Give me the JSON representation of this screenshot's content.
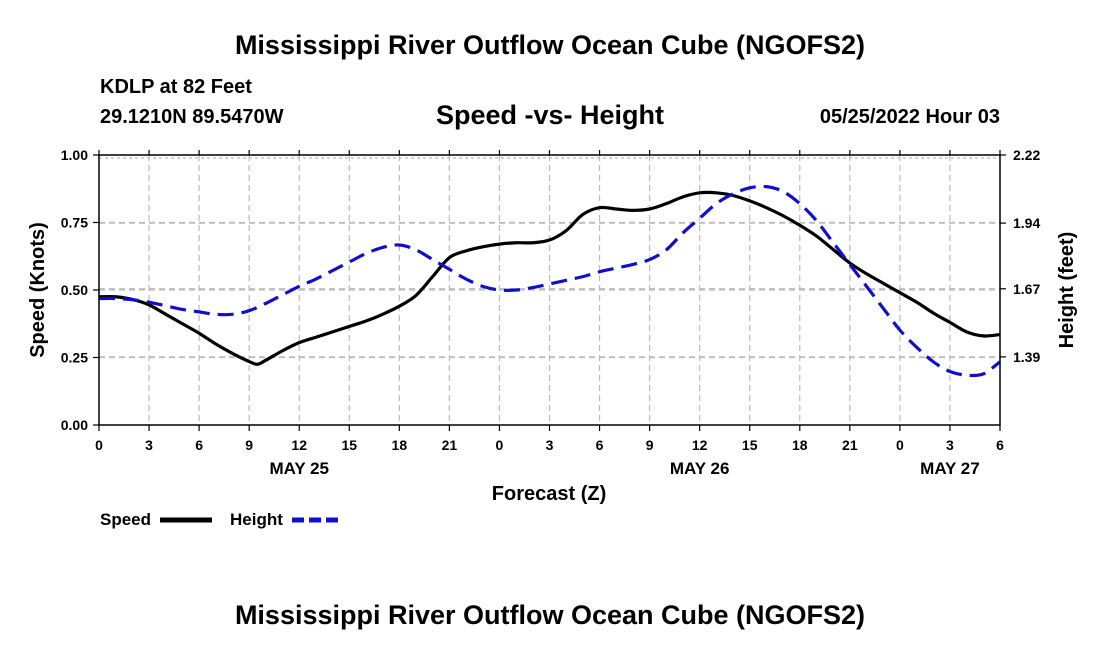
{
  "header": {
    "title": "Mississippi River Outflow Ocean Cube (NGOFS2)",
    "station": "KDLP at 82 Feet",
    "coords": "29.1210N  89.5470W",
    "chart_title": "Speed -vs- Height",
    "timestamp": "05/25/2022 Hour 03"
  },
  "footer": {
    "title": "Mississippi River Outflow Ocean Cube (NGOFS2)"
  },
  "colors": {
    "speed": "#000000",
    "height": "#1010cc",
    "grid": "#bbbbbb"
  },
  "chart_data": {
    "type": "line",
    "title": "Speed -vs- Height",
    "xlabel": "Forecast (Z)",
    "ylabel": "Speed (Knots)",
    "y2label": "Height (feet)",
    "x_hours_range": [
      0,
      54
    ],
    "x_tick_hours": [
      0,
      3,
      6,
      9,
      12,
      15,
      18,
      21,
      24,
      27,
      30,
      33,
      36,
      39,
      42,
      45,
      48,
      51,
      54
    ],
    "x_tick_labels": [
      "0",
      "3",
      "6",
      "9",
      "12",
      "15",
      "18",
      "21",
      "0",
      "3",
      "6",
      "9",
      "12",
      "15",
      "18",
      "21",
      "0",
      "3",
      "6"
    ],
    "date_labels": [
      {
        "hour": 12,
        "label": "MAY 25"
      },
      {
        "hour": 36,
        "label": "MAY 26"
      },
      {
        "hour": 51,
        "label": "MAY 27"
      }
    ],
    "ylim": [
      0,
      1.0
    ],
    "y_ticks": [
      0,
      0.25,
      0.5,
      0.75,
      1.0
    ],
    "y_tick_labels": [
      "0.00",
      "0.25",
      "0.50",
      "0.75",
      "1.00"
    ],
    "y2lim": [
      1.11,
      2.22
    ],
    "y2_ticks": [
      1.39,
      1.67,
      1.94,
      2.22
    ],
    "y2_tick_labels": [
      "1.39",
      "1.67",
      "1.94",
      "2.22"
    ],
    "grid": true,
    "legend_position": "bottom-left",
    "series": [
      {
        "name": "Speed",
        "axis": "left",
        "style": "solid",
        "x": [
          0,
          1,
          2,
          3,
          4,
          5,
          6,
          7,
          8,
          9,
          9.5,
          10,
          11,
          12,
          13,
          14,
          15,
          16,
          17,
          18,
          19,
          20,
          21,
          22,
          23,
          24,
          25,
          26,
          27,
          28,
          29,
          30,
          31,
          32,
          33,
          34,
          35,
          36,
          37,
          38,
          39,
          40,
          41,
          42,
          43,
          44,
          45,
          46,
          47,
          48,
          49,
          50,
          51,
          52,
          53,
          54
        ],
        "values": [
          0.475,
          0.475,
          0.465,
          0.445,
          0.41,
          0.375,
          0.34,
          0.3,
          0.265,
          0.235,
          0.225,
          0.24,
          0.275,
          0.305,
          0.325,
          0.345,
          0.365,
          0.385,
          0.41,
          0.44,
          0.48,
          0.55,
          0.62,
          0.645,
          0.66,
          0.67,
          0.675,
          0.675,
          0.685,
          0.72,
          0.78,
          0.805,
          0.8,
          0.795,
          0.8,
          0.82,
          0.845,
          0.86,
          0.86,
          0.85,
          0.83,
          0.805,
          0.775,
          0.74,
          0.7,
          0.65,
          0.6,
          0.56,
          0.525,
          0.49,
          0.455,
          0.415,
          0.38,
          0.345,
          0.33,
          0.335
        ]
      },
      {
        "name": "Height",
        "axis": "right",
        "style": "dashed",
        "x": [
          0,
          1,
          2,
          3,
          4,
          5,
          6,
          7,
          8,
          9,
          10,
          11,
          12,
          13,
          14,
          15,
          16,
          17,
          18,
          19,
          20,
          21,
          22,
          23,
          24,
          25,
          26,
          27,
          28,
          29,
          30,
          31,
          32,
          33,
          34,
          35,
          36,
          37,
          38,
          39,
          40,
          41,
          42,
          43,
          44,
          45,
          46,
          47,
          48,
          49,
          50,
          51,
          52,
          53,
          54
        ],
        "values": [
          1.63,
          1.63,
          1.625,
          1.615,
          1.6,
          1.585,
          1.575,
          1.565,
          1.565,
          1.58,
          1.61,
          1.645,
          1.68,
          1.71,
          1.745,
          1.78,
          1.815,
          1.84,
          1.85,
          1.83,
          1.79,
          1.75,
          1.71,
          1.68,
          1.665,
          1.665,
          1.675,
          1.69,
          1.705,
          1.72,
          1.74,
          1.755,
          1.77,
          1.79,
          1.83,
          1.9,
          1.96,
          2.02,
          2.06,
          2.085,
          2.09,
          2.07,
          2.02,
          1.95,
          1.86,
          1.77,
          1.68,
          1.59,
          1.5,
          1.43,
          1.37,
          1.33,
          1.315,
          1.32,
          1.37
        ]
      }
    ]
  }
}
